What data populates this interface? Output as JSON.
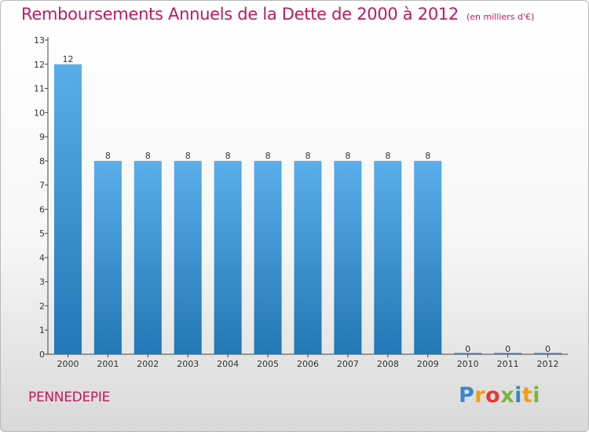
{
  "header": {
    "title": "Remboursements Annuels de la Dette de 2000 à 2012",
    "subtitle": "(en milliers d'€)"
  },
  "footer": {
    "commune": "PENNEDEPIE",
    "logo": {
      "letters": [
        "P",
        "r",
        "o",
        "x",
        "i",
        "t",
        "i"
      ],
      "colors": [
        "#3a86c8",
        "#f39c12",
        "#e53935",
        "#7cb342",
        "#3a86c8",
        "#f39c12",
        "#7cb342"
      ]
    }
  },
  "chart_data": {
    "type": "bar",
    "categories": [
      "2000",
      "2001",
      "2002",
      "2003",
      "2004",
      "2005",
      "2006",
      "2007",
      "2008",
      "2009",
      "2010",
      "2011",
      "2012"
    ],
    "values": [
      12,
      8,
      8,
      8,
      8,
      8,
      8,
      8,
      8,
      8,
      0,
      0,
      0
    ],
    "data_labels": [
      "12",
      "8",
      "8",
      "8",
      "8",
      "8",
      "8",
      "8",
      "8",
      "8",
      "0",
      "0",
      "0"
    ],
    "yticks": [
      "0",
      "1",
      "2",
      "3",
      "4",
      "5",
      "6",
      "7",
      "8",
      "9",
      "10",
      "11",
      "12",
      "13"
    ],
    "ylim": [
      0,
      13
    ],
    "xlabel": "",
    "ylabel": "",
    "grid": false,
    "colors": {
      "bar_light": "#5aaee8",
      "bar_dark": "#2277b5",
      "axis": "#444444",
      "text": "#333333"
    }
  }
}
